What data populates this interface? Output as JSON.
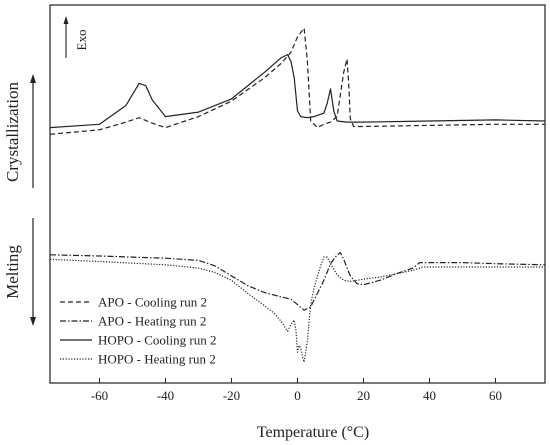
{
  "chart_data": {
    "type": "line",
    "title": "",
    "xlabel": "Temperature (°C)",
    "ylabel": "",
    "xlim": [
      -75,
      75
    ],
    "xticks": [
      -60,
      -40,
      -20,
      0,
      20,
      40,
      60
    ],
    "grid": false,
    "legend_position": "bottom-left",
    "side_labels": {
      "top": "Crystallization",
      "bottom": "Melting"
    },
    "exo_label": "Exo",
    "series": [
      {
        "name": "APO - Cooling run 2",
        "style": "dashed",
        "color": "#222222",
        "x": [
          -75,
          -60,
          -52,
          -48,
          -44,
          -40,
          -30,
          -20,
          -10,
          -5,
          -2,
          0,
          2,
          3,
          4,
          6,
          8,
          10,
          12,
          13,
          14,
          15,
          15.5,
          16,
          17,
          20,
          40,
          60,
          75
        ],
        "y": [
          -0.06,
          -0.02,
          0.05,
          0.09,
          0.04,
          0.0,
          0.1,
          0.24,
          0.45,
          0.58,
          0.68,
          0.82,
          0.9,
          0.6,
          0.06,
          0.0,
          0.03,
          0.05,
          0.1,
          0.3,
          0.5,
          0.62,
          0.4,
          0.08,
          0.01,
          0.01,
          0.02,
          0.03,
          0.03
        ]
      },
      {
        "name": "APO - Heating run 2",
        "style": "dashdot",
        "color": "#222222",
        "x": [
          -75,
          -60,
          -40,
          -30,
          -25,
          -20,
          -15,
          -10,
          -5,
          -2,
          0,
          2,
          4,
          6,
          8,
          10,
          12,
          13,
          14,
          16,
          18,
          20,
          25,
          30,
          35,
          37,
          40,
          50,
          60,
          75
        ],
        "y": [
          -1.15,
          -1.16,
          -1.18,
          -1.2,
          -1.25,
          -1.34,
          -1.43,
          -1.49,
          -1.53,
          -1.55,
          -1.6,
          -1.65,
          -1.62,
          -1.5,
          -1.38,
          -1.23,
          -1.15,
          -1.13,
          -1.19,
          -1.34,
          -1.41,
          -1.42,
          -1.38,
          -1.32,
          -1.27,
          -1.22,
          -1.22,
          -1.22,
          -1.23,
          -1.24
        ]
      },
      {
        "name": "HOPO - Cooling run 2",
        "style": "solid",
        "color": "#222222",
        "x": [
          -75,
          -60,
          -52,
          -48,
          -46,
          -44,
          -40,
          -30,
          -20,
          -10,
          -5,
          -3,
          -2,
          -1,
          0,
          1,
          3,
          5,
          8,
          9,
          10,
          11,
          12,
          15,
          20,
          40,
          60,
          75
        ],
        "y": [
          0.0,
          0.03,
          0.2,
          0.4,
          0.38,
          0.25,
          0.1,
          0.14,
          0.26,
          0.5,
          0.63,
          0.66,
          0.6,
          0.45,
          0.15,
          0.1,
          0.09,
          0.1,
          0.13,
          0.22,
          0.35,
          0.15,
          0.06,
          0.05,
          0.05,
          0.06,
          0.07,
          0.06
        ]
      },
      {
        "name": "HOPO - Heating run 2",
        "style": "dotted",
        "color": "#222222",
        "x": [
          -75,
          -60,
          -40,
          -30,
          -25,
          -20,
          -15,
          -10,
          -7,
          -5,
          -3,
          -2,
          -1,
          -0.5,
          0,
          0.5,
          1,
          1.5,
          2,
          3,
          4,
          5,
          6,
          7,
          8,
          9,
          10,
          12,
          14,
          16,
          18,
          20,
          25,
          30,
          35,
          38,
          40,
          50,
          60,
          75
        ],
        "y": [
          -1.19,
          -1.21,
          -1.24,
          -1.27,
          -1.31,
          -1.38,
          -1.5,
          -1.61,
          -1.68,
          -1.75,
          -1.84,
          -1.78,
          -1.74,
          -1.83,
          -2.03,
          -1.97,
          -1.99,
          -2.07,
          -2.12,
          -1.93,
          -1.6,
          -1.45,
          -1.35,
          -1.25,
          -1.17,
          -1.17,
          -1.23,
          -1.33,
          -1.38,
          -1.39,
          -1.38,
          -1.37,
          -1.35,
          -1.32,
          -1.29,
          -1.26,
          -1.26,
          -1.26,
          -1.26,
          -1.26
        ]
      }
    ]
  }
}
